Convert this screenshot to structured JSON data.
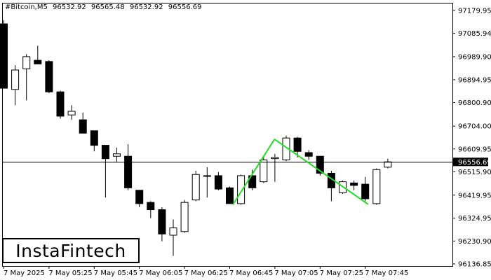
{
  "header": {
    "symbol": "#Bitcoin,M5",
    "open": "96532.92",
    "high": "96565.48",
    "low": "96532.92",
    "close": "96556.69"
  },
  "logo": {
    "text": "InstaFintech"
  },
  "colors": {
    "pattern_line": "#22dd22",
    "candle_bull": "#ffffff",
    "candle_bear": "#000000",
    "price_line": "#000000"
  },
  "chart_data": {
    "type": "candlestick",
    "ylim": [
      96136.85,
      97184.0
    ],
    "y_ticks": [
      "97179.95",
      "97085.94",
      "96989.90",
      "96894.95",
      "96800.90",
      "96704.00",
      "96609.95",
      "96515.90",
      "96419.95",
      "96324.95",
      "96230.90",
      "96136.85"
    ],
    "x_ticks": [
      {
        "index": 0,
        "label": "7 May 2025"
      },
      {
        "index": 4,
        "label": "7 May 05:25"
      },
      {
        "index": 8,
        "label": "7 May 05:45"
      },
      {
        "index": 12,
        "label": "7 May 06:05"
      },
      {
        "index": 16,
        "label": "7 May 06:25"
      },
      {
        "index": 20,
        "label": "7 May 06:45"
      },
      {
        "index": 24,
        "label": "7 May 07:05"
      },
      {
        "index": 28,
        "label": "7 May 07:25"
      },
      {
        "index": 32,
        "label": "7 May 07:45"
      }
    ],
    "current_price": "96556.69",
    "candles": [
      {
        "o": 97125,
        "h": 97140,
        "l": 96860,
        "c": 96860
      },
      {
        "o": 96855,
        "h": 96955,
        "l": 96790,
        "c": 96935
      },
      {
        "o": 96940,
        "h": 97000,
        "l": 96810,
        "c": 96990
      },
      {
        "o": 96975,
        "h": 97035,
        "l": 96960,
        "c": 96960
      },
      {
        "o": 96970,
        "h": 96975,
        "l": 96840,
        "c": 96845
      },
      {
        "o": 96845,
        "h": 96850,
        "l": 96735,
        "c": 96745
      },
      {
        "o": 96750,
        "h": 96790,
        "l": 96730,
        "c": 96765
      },
      {
        "o": 96730,
        "h": 96760,
        "l": 96675,
        "c": 96675
      },
      {
        "o": 96685,
        "h": 96685,
        "l": 96600,
        "c": 96625
      },
      {
        "o": 96625,
        "h": 96625,
        "l": 96410,
        "c": 96570
      },
      {
        "o": 96580,
        "h": 96615,
        "l": 96555,
        "c": 96590
      },
      {
        "o": 96580,
        "h": 96630,
        "l": 96440,
        "c": 96450
      },
      {
        "o": 96440,
        "h": 96440,
        "l": 96370,
        "c": 96385
      },
      {
        "o": 96390,
        "h": 96395,
        "l": 96325,
        "c": 96360
      },
      {
        "o": 96360,
        "h": 96370,
        "l": 96230,
        "c": 96260
      },
      {
        "o": 96255,
        "h": 96320,
        "l": 96170,
        "c": 96285
      },
      {
        "o": 96270,
        "h": 96400,
        "l": 96265,
        "c": 96390
      },
      {
        "o": 96400,
        "h": 96520,
        "l": 96395,
        "c": 96505
      },
      {
        "o": 96500,
        "h": 96535,
        "l": 96410,
        "c": 96500
      },
      {
        "o": 96500,
        "h": 96515,
        "l": 96440,
        "c": 96445
      },
      {
        "o": 96450,
        "h": 96455,
        "l": 96385,
        "c": 96385
      },
      {
        "o": 96385,
        "h": 96505,
        "l": 96380,
        "c": 96500
      },
      {
        "o": 96500,
        "h": 96525,
        "l": 96440,
        "c": 96450
      },
      {
        "o": 96475,
        "h": 96580,
        "l": 96470,
        "c": 96565
      },
      {
        "o": 96570,
        "h": 96590,
        "l": 96475,
        "c": 96575
      },
      {
        "o": 96565,
        "h": 96665,
        "l": 96560,
        "c": 96655
      },
      {
        "o": 96655,
        "h": 96660,
        "l": 96575,
        "c": 96600
      },
      {
        "o": 96595,
        "h": 96605,
        "l": 96565,
        "c": 96580
      },
      {
        "o": 96580,
        "h": 96580,
        "l": 96500,
        "c": 96510
      },
      {
        "o": 96510,
        "h": 96520,
        "l": 96395,
        "c": 96450
      },
      {
        "o": 96430,
        "h": 96480,
        "l": 96425,
        "c": 96475
      },
      {
        "o": 96470,
        "h": 96480,
        "l": 96440,
        "c": 96460
      },
      {
        "o": 96465,
        "h": 96495,
        "l": 96395,
        "c": 96405
      },
      {
        "o": 96385,
        "h": 96530,
        "l": 96380,
        "c": 96525
      },
      {
        "o": 96535,
        "h": 96570,
        "l": 96530,
        "c": 96557
      }
    ],
    "pattern": [
      {
        "index": 20.3,
        "price": 96380
      },
      {
        "index": 24.0,
        "price": 96650
      },
      {
        "index": 32.3,
        "price": 96382
      }
    ]
  }
}
